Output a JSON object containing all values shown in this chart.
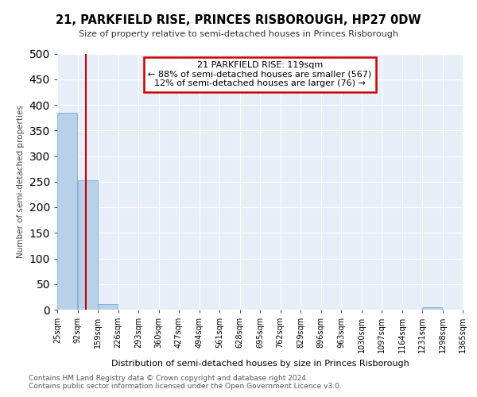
{
  "title": "21, PARKFIELD RISE, PRINCES RISBOROUGH, HP27 0DW",
  "subtitle": "Size of property relative to semi-detached houses in Princes Risborough",
  "xlabel": "Distribution of semi-detached houses by size in Princes Risborough",
  "ylabel": "Number of semi-detached properties",
  "footer_line1": "Contains HM Land Registry data © Crown copyright and database right 2024.",
  "footer_line2": "Contains public sector information licensed under the Open Government Licence v3.0.",
  "annotation_line1": "21 PARKFIELD RISE: 119sqm",
  "annotation_line2": "← 88% of semi-detached houses are smaller (567)",
  "annotation_line3": "12% of semi-detached houses are larger (76) →",
  "property_size": 119,
  "bar_color": "#b8d0e8",
  "bar_edge_color": "#7aafd4",
  "vline_color": "#cc0000",
  "annotation_box_edge_color": "#cc0000",
  "bin_edges": [
    25,
    92,
    159,
    226,
    293,
    360,
    427,
    494,
    561,
    628,
    695,
    762,
    829,
    896,
    963,
    1030,
    1097,
    1164,
    1231,
    1298,
    1365
  ],
  "bin_labels": [
    "25sqm",
    "92sqm",
    "159sqm",
    "226sqm",
    "293sqm",
    "360sqm",
    "427sqm",
    "494sqm",
    "561sqm",
    "628sqm",
    "695sqm",
    "762sqm",
    "829sqm",
    "896sqm",
    "963sqm",
    "1030sqm",
    "1097sqm",
    "1164sqm",
    "1231sqm",
    "1298sqm",
    "1365sqm"
  ],
  "bar_heights": [
    384,
    252,
    11,
    0,
    0,
    0,
    0,
    0,
    0,
    0,
    0,
    0,
    0,
    0,
    0,
    0,
    0,
    0,
    5,
    0
  ],
  "ylim": [
    0,
    500
  ],
  "yticks": [
    0,
    50,
    100,
    150,
    200,
    250,
    300,
    350,
    400,
    450,
    500
  ],
  "plot_bg_color": "#e8eef8"
}
